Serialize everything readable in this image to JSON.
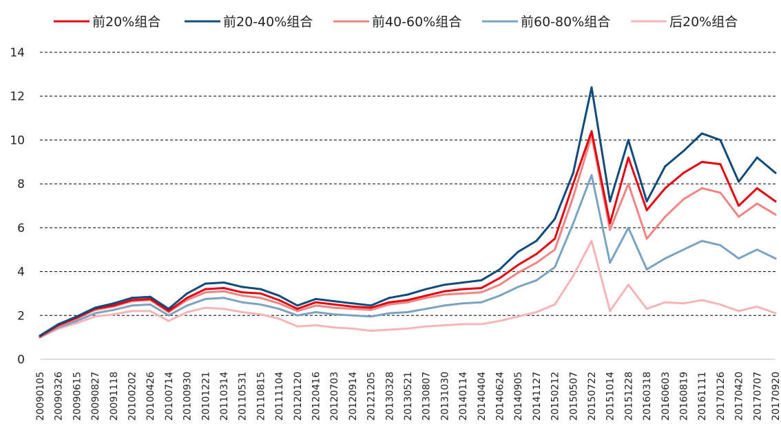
{
  "chart_data": {
    "type": "line",
    "title": "",
    "xlabel": "",
    "ylabel": "",
    "ylim": [
      0,
      14
    ],
    "yticks": [
      0,
      2,
      4,
      6,
      8,
      10,
      12,
      14
    ],
    "grid": "horizontal dashed",
    "legend_position": "top",
    "x_tick_labels": [
      "20090105",
      "20090326",
      "20090615",
      "20090827",
      "20091118",
      "20100202",
      "20100426",
      "20100714",
      "20100930",
      "20101221",
      "20110314",
      "20110531",
      "20110815",
      "20111104",
      "20120120",
      "20120416",
      "20120703",
      "20120914",
      "20121205",
      "20130328",
      "20130521",
      "20130807",
      "20131030",
      "20140114",
      "20140404",
      "20140624",
      "20140905",
      "20141127",
      "20150212",
      "20150507",
      "20150722",
      "20151014",
      "20151228",
      "20160318",
      "20160603",
      "20160819",
      "20161111",
      "20170126",
      "20170420",
      "20170707",
      "20170920"
    ],
    "series": [
      {
        "name": "前20%组合",
        "color": "#e3000f",
        "values": [
          1.05,
          1.55,
          1.9,
          2.3,
          2.45,
          2.7,
          2.75,
          2.2,
          2.8,
          3.2,
          3.25,
          3.05,
          3.0,
          2.7,
          2.3,
          2.6,
          2.5,
          2.4,
          2.35,
          2.6,
          2.7,
          2.9,
          3.1,
          3.2,
          3.25,
          3.7,
          4.3,
          4.8,
          5.5,
          8.0,
          10.4,
          6.2,
          9.2,
          6.8,
          7.8,
          8.5,
          9.0,
          8.9,
          7.0,
          7.8,
          7.2
        ]
      },
      {
        "name": "前20-40%组合",
        "color": "#0e4a7a",
        "values": [
          1.08,
          1.6,
          1.95,
          2.35,
          2.55,
          2.8,
          2.85,
          2.3,
          3.0,
          3.45,
          3.5,
          3.3,
          3.2,
          2.9,
          2.45,
          2.75,
          2.65,
          2.55,
          2.45,
          2.8,
          2.95,
          3.2,
          3.4,
          3.5,
          3.6,
          4.1,
          4.9,
          5.4,
          6.4,
          8.5,
          12.4,
          7.2,
          10.0,
          7.2,
          8.8,
          9.5,
          10.3,
          10.0,
          8.1,
          9.2,
          8.5
        ]
      },
      {
        "name": "前40-60%组合",
        "color": "#f08482",
        "values": [
          1.02,
          1.5,
          1.85,
          2.25,
          2.4,
          2.65,
          2.7,
          2.15,
          2.7,
          3.05,
          3.1,
          2.9,
          2.8,
          2.55,
          2.2,
          2.45,
          2.35,
          2.3,
          2.25,
          2.5,
          2.6,
          2.8,
          2.95,
          3.0,
          3.05,
          3.4,
          3.95,
          4.4,
          5.0,
          7.4,
          10.2,
          5.9,
          8.0,
          5.5,
          6.5,
          7.3,
          7.8,
          7.6,
          6.5,
          7.1,
          6.6
        ]
      },
      {
        "name": "前60-80%组合",
        "color": "#7aa3c2",
        "values": [
          1.0,
          1.45,
          1.75,
          2.1,
          2.25,
          2.45,
          2.5,
          2.0,
          2.45,
          2.75,
          2.8,
          2.6,
          2.5,
          2.3,
          2.0,
          2.15,
          2.05,
          2.0,
          1.95,
          2.1,
          2.15,
          2.3,
          2.45,
          2.55,
          2.6,
          2.9,
          3.3,
          3.6,
          4.2,
          6.2,
          8.4,
          4.4,
          6.0,
          4.1,
          4.6,
          5.0,
          5.4,
          5.2,
          4.6,
          5.0,
          4.6
        ]
      },
      {
        "name": "后20%组合",
        "color": "#f5b5b8",
        "values": [
          1.0,
          1.4,
          1.65,
          1.95,
          2.05,
          2.2,
          2.2,
          1.75,
          2.15,
          2.35,
          2.3,
          2.15,
          2.05,
          1.85,
          1.5,
          1.55,
          1.45,
          1.4,
          1.3,
          1.35,
          1.4,
          1.5,
          1.55,
          1.6,
          1.6,
          1.75,
          1.95,
          2.15,
          2.5,
          3.8,
          5.4,
          2.2,
          3.4,
          2.3,
          2.6,
          2.55,
          2.7,
          2.5,
          2.2,
          2.4,
          2.1
        ]
      }
    ]
  }
}
